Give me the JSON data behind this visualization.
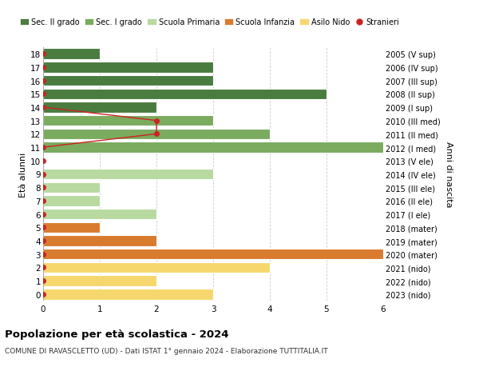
{
  "ages": [
    18,
    17,
    16,
    15,
    14,
    13,
    12,
    11,
    10,
    9,
    8,
    7,
    6,
    5,
    4,
    3,
    2,
    1,
    0
  ],
  "right_labels": [
    "2005 (V sup)",
    "2006 (IV sup)",
    "2007 (III sup)",
    "2008 (II sup)",
    "2009 (I sup)",
    "2010 (III med)",
    "2011 (II med)",
    "2012 (I med)",
    "2013 (V ele)",
    "2014 (IV ele)",
    "2015 (III ele)",
    "2016 (II ele)",
    "2017 (I ele)",
    "2018 (mater)",
    "2019 (mater)",
    "2020 (mater)",
    "2021 (nido)",
    "2022 (nido)",
    "2023 (nido)"
  ],
  "bars": [
    {
      "age": 18,
      "value": 1,
      "color": "#4a7c3f"
    },
    {
      "age": 17,
      "value": 3,
      "color": "#4a7c3f"
    },
    {
      "age": 16,
      "value": 3,
      "color": "#4a7c3f"
    },
    {
      "age": 15,
      "value": 5,
      "color": "#4a7c3f"
    },
    {
      "age": 14,
      "value": 2,
      "color": "#4a7c3f"
    },
    {
      "age": 13,
      "value": 3,
      "color": "#7aab5e"
    },
    {
      "age": 12,
      "value": 4,
      "color": "#7aab5e"
    },
    {
      "age": 11,
      "value": 6,
      "color": "#7aab5e"
    },
    {
      "age": 10,
      "value": 0,
      "color": "#b8d9a0"
    },
    {
      "age": 9,
      "value": 3,
      "color": "#b8d9a0"
    },
    {
      "age": 8,
      "value": 1,
      "color": "#b8d9a0"
    },
    {
      "age": 7,
      "value": 1,
      "color": "#b8d9a0"
    },
    {
      "age": 6,
      "value": 2,
      "color": "#b8d9a0"
    },
    {
      "age": 5,
      "value": 1,
      "color": "#d97b2e"
    },
    {
      "age": 4,
      "value": 2,
      "color": "#d97b2e"
    },
    {
      "age": 3,
      "value": 6,
      "color": "#d97b2e"
    },
    {
      "age": 2,
      "value": 4,
      "color": "#f5d76e"
    },
    {
      "age": 1,
      "value": 2,
      "color": "#f5d76e"
    },
    {
      "age": 0,
      "value": 3,
      "color": "#f5d76e"
    }
  ],
  "stranieri": [
    {
      "age": 18,
      "value": 0
    },
    {
      "age": 17,
      "value": 0
    },
    {
      "age": 16,
      "value": 0
    },
    {
      "age": 15,
      "value": 0
    },
    {
      "age": 14,
      "value": 0
    },
    {
      "age": 13,
      "value": 2
    },
    {
      "age": 12,
      "value": 2
    },
    {
      "age": 11,
      "value": 0
    },
    {
      "age": 10,
      "value": 0
    },
    {
      "age": 9,
      "value": 0
    },
    {
      "age": 8,
      "value": 0
    },
    {
      "age": 7,
      "value": 0
    },
    {
      "age": 6,
      "value": 0
    },
    {
      "age": 5,
      "value": 0
    },
    {
      "age": 4,
      "value": 0
    },
    {
      "age": 3,
      "value": 0
    },
    {
      "age": 2,
      "value": 0
    },
    {
      "age": 1,
      "value": 0
    },
    {
      "age": 0,
      "value": 0
    }
  ],
  "stranieri_line_ages": [
    18,
    17,
    16,
    15,
    14,
    13,
    12,
    11
  ],
  "legend_items": [
    {
      "label": "Sec. II grado",
      "color": "#4a7c3f"
    },
    {
      "label": "Sec. I grado",
      "color": "#7aab5e"
    },
    {
      "label": "Scuola Primaria",
      "color": "#b8d9a0"
    },
    {
      "label": "Scuola Infanzia",
      "color": "#d97b2e"
    },
    {
      "label": "Asilo Nido",
      "color": "#f5d76e"
    },
    {
      "label": "Stranieri",
      "color": "#cc2222"
    }
  ],
  "title": "Popolazione per età scolastica - 2024",
  "subtitle": "COMUNE DI RAVASCLETTO (UD) - Dati ISTAT 1° gennaio 2024 - Elaborazione TUTTITALIA.IT",
  "ylabel_left": "Età alunni",
  "ylabel_right": "Anni di nascita",
  "xlim": [
    0,
    6
  ],
  "background_color": "#ffffff",
  "bar_height": 0.8,
  "grid_color": "#cccccc"
}
